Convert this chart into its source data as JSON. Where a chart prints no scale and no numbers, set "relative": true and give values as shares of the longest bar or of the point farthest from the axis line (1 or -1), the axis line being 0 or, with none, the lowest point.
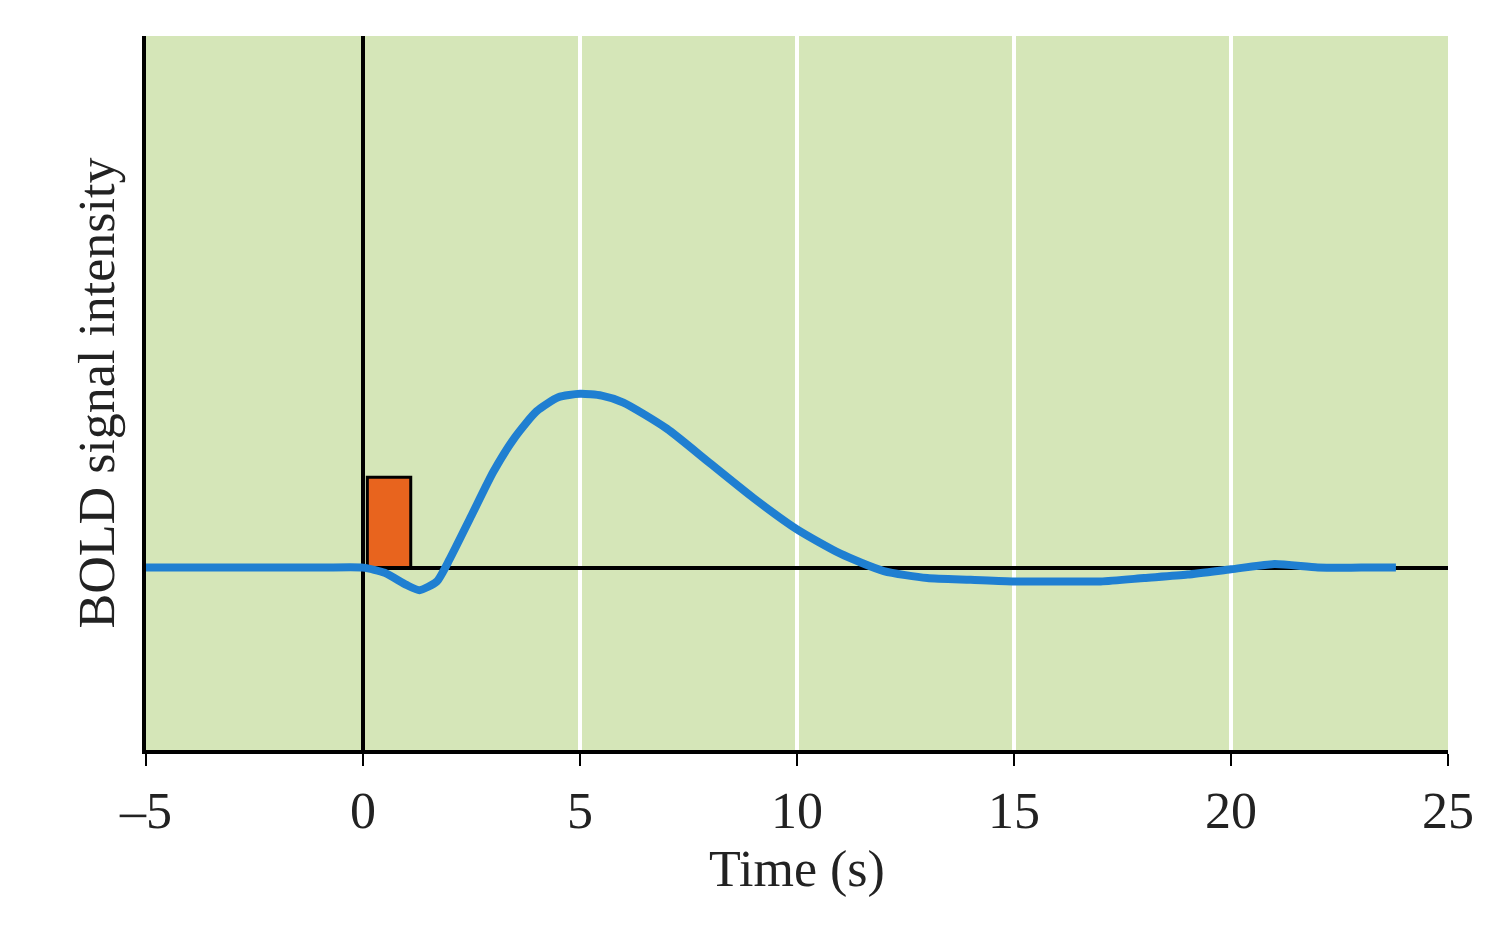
{
  "chart_data": {
    "type": "line",
    "relative": true,
    "xlabel": "Time (s)",
    "ylabel": "BOLD signal intensity",
    "x": [
      -5,
      -1,
      0,
      0.5,
      1,
      1.3,
      1.7,
      2,
      2.5,
      3,
      3.5,
      4,
      4.5,
      5,
      5.5,
      6,
      7,
      8,
      9,
      10,
      11,
      12,
      13,
      14,
      15,
      16,
      17,
      18,
      19,
      20,
      21,
      22,
      23,
      23.8
    ],
    "series": [
      {
        "type": "bar",
        "x": [
          0.6
        ],
        "values": [
          0.52
        ],
        "color": "#e8641e"
      },
      {
        "color": "#1f7fd1",
        "values": [
          0,
          0,
          0,
          -0.03,
          -0.1,
          -0.13,
          -0.08,
          0.05,
          0.3,
          0.55,
          0.75,
          0.9,
          0.98,
          1,
          0.99,
          0.95,
          0.8,
          0.6,
          0.4,
          0.22,
          0.08,
          -0.02,
          -0.06,
          -0.07,
          -0.08,
          -0.08,
          -0.08,
          -0.06,
          -0.04,
          -0.01,
          0.02,
          0,
          0,
          0
        ]
      }
    ],
    "xlim": [
      -5,
      25
    ],
    "xticks": [
      {
        "value": -5,
        "label": "–5"
      },
      0,
      5,
      10,
      15,
      20,
      25
    ],
    "grid": "x",
    "marker": "none",
    "line_style": "solid"
  }
}
